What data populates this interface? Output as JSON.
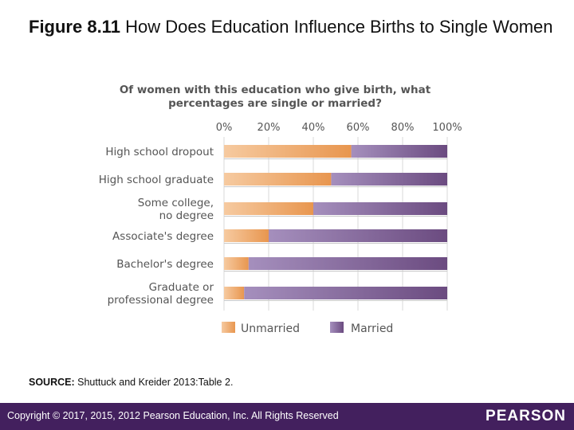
{
  "figure": {
    "number": "Figure 8.11",
    "title": "How Does Education Influence Births to Single Women"
  },
  "source": {
    "label": "SOURCE:",
    "text": "Shuttuck and Kreider 2013:Table 2."
  },
  "footer": {
    "copyright": "Copyright © 2017, 2015, 2012 Pearson Education, Inc. All Rights Reserved",
    "logo": "PEARSON"
  },
  "colors": {
    "unmarried": "#e89a55",
    "married": "#7a5a8f",
    "footer_bg": "#43205e"
  },
  "chart_data": {
    "type": "bar",
    "orientation": "horizontal",
    "stacked": true,
    "title": "Of women with this education who give birth, what percentages are single or married?",
    "title_lines": [
      "Of women with this education who give birth, what",
      "percentages are single or married?"
    ],
    "x_ticks": [
      "0%",
      "20%",
      "40%",
      "60%",
      "80%",
      "100%"
    ],
    "xlim": [
      0,
      100
    ],
    "categories": [
      [
        "High school dropout"
      ],
      [
        "High school graduate"
      ],
      [
        "Some college,",
        "no degree"
      ],
      [
        "Associate's degree"
      ],
      [
        "Bachelor's degree"
      ],
      [
        "Graduate or",
        "professional degree"
      ]
    ],
    "series": [
      {
        "name": "Unmarried",
        "values": [
          57,
          48,
          40,
          20,
          11,
          9
        ]
      },
      {
        "name": "Married",
        "values": [
          43,
          52,
          60,
          80,
          89,
          91
        ]
      }
    ],
    "legend": [
      "Unmarried",
      "Married"
    ],
    "legend_position": "bottom",
    "grid": true
  }
}
